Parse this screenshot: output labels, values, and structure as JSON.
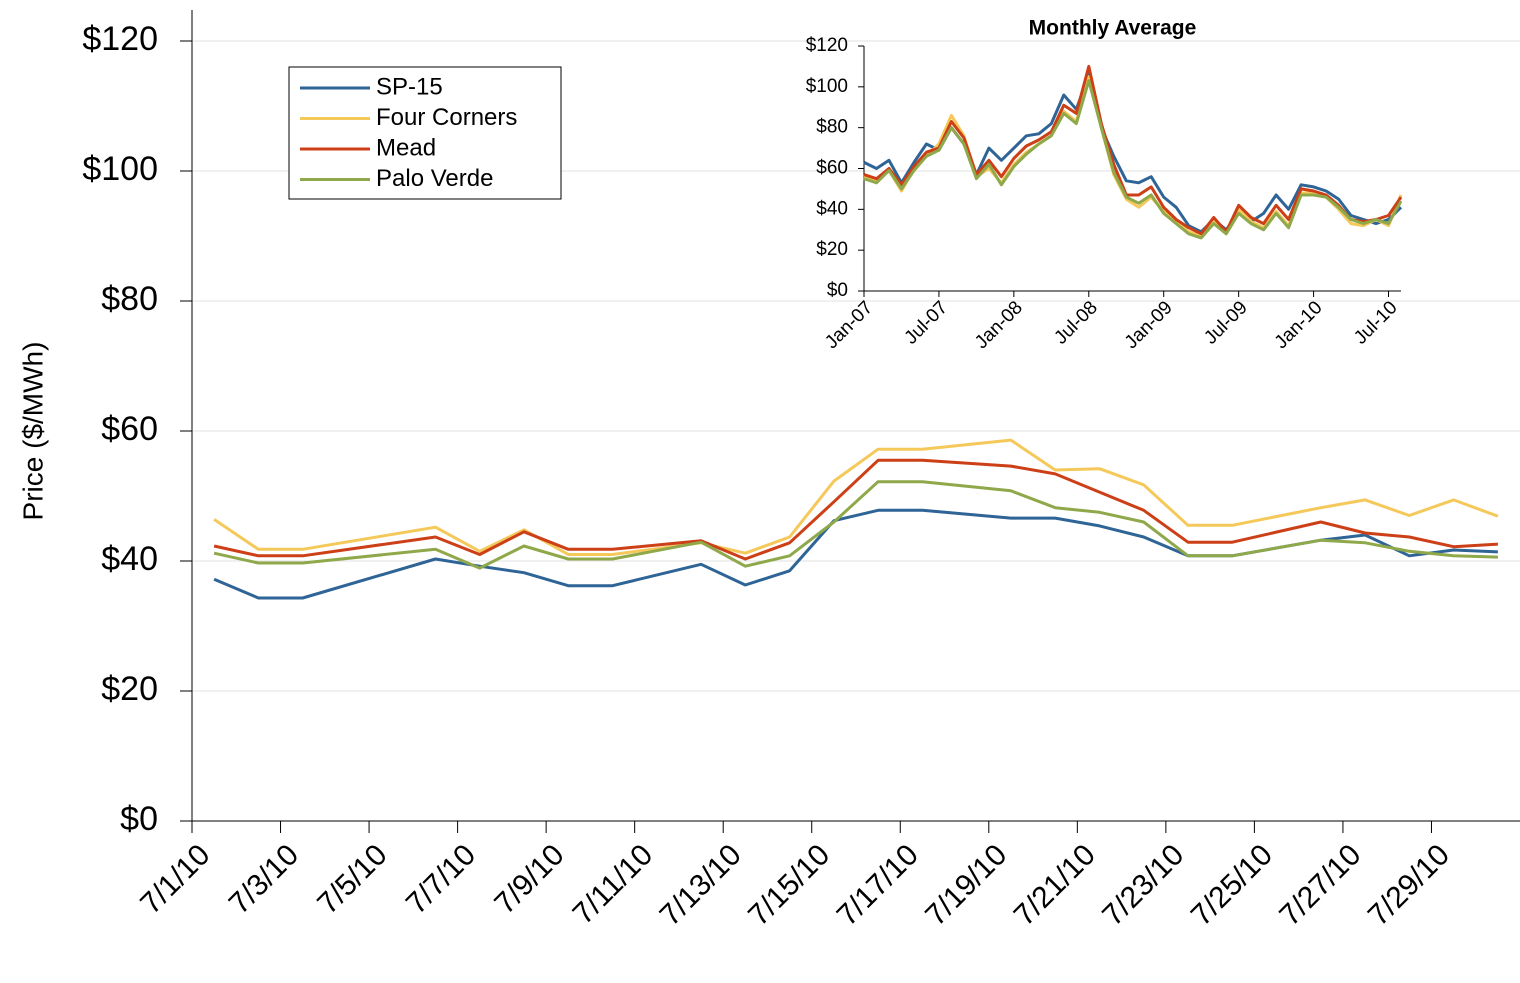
{
  "chart_data": [
    {
      "type": "line",
      "y_label": "Price ($/MWh)",
      "x": [
        "7/1/10",
        "7/2/10",
        "7/3/10",
        "7/6/10",
        "7/7/10",
        "7/8/10",
        "7/9/10",
        "7/10/10",
        "7/12/10",
        "7/13/10",
        "7/14/10",
        "7/15/10",
        "7/16/10",
        "7/17/10",
        "7/19/10",
        "7/20/10",
        "7/21/10",
        "7/22/10",
        "7/23/10",
        "7/24/10",
        "7/26/10",
        "7/27/10",
        "7/28/10",
        "7/29/10",
        "7/30/10"
      ],
      "xlim": [
        "7/1/10",
        "7/30/10"
      ],
      "xticks": [
        "7/1/10",
        "7/3/10",
        "7/5/10",
        "7/7/10",
        "7/9/10",
        "7/11/10",
        "7/13/10",
        "7/15/10",
        "7/17/10",
        "7/19/10",
        "7/21/10",
        "7/23/10",
        "7/25/10",
        "7/27/10",
        "7/29/10"
      ],
      "ylim": [
        0,
        120
      ],
      "yticks": [
        {
          "value": 0,
          "label": "$0"
        },
        {
          "value": 20,
          "label": "$20"
        },
        {
          "value": 40,
          "label": "$40"
        },
        {
          "value": 60,
          "label": "$60"
        },
        {
          "value": 80,
          "label": "$80"
        },
        {
          "value": 100,
          "label": "$100"
        },
        {
          "value": 120,
          "label": "$120"
        }
      ],
      "grid": true,
      "legend": "upper left",
      "series": [
        {
          "name": "SP-15",
          "color": "#2e6496",
          "values": [
            37.2,
            34.3,
            34.3,
            40.3,
            39.2,
            38.2,
            36.2,
            36.2,
            39.5,
            36.3,
            38.5,
            46.2,
            47.8,
            47.8,
            46.6,
            46.6,
            45.4,
            43.7,
            40.8,
            40.8,
            43.2,
            44,
            40.8,
            41.7,
            41.4
          ]
        },
        {
          "name": "Four Corners",
          "color": "#f5c85a",
          "values": [
            46.4,
            41.8,
            41.8,
            45.2,
            41.5,
            44.8,
            41,
            41,
            42.8,
            41.2,
            43.7,
            52.3,
            57.2,
            57.2,
            58.6,
            54,
            54.2,
            51.7,
            45.5,
            45.5,
            48.2,
            49.4,
            47,
            49.4,
            46.9
          ]
        },
        {
          "name": "Mead",
          "color": "#cc3f17",
          "values": [
            42.3,
            40.8,
            40.8,
            43.7,
            41,
            44.5,
            41.8,
            41.8,
            43.1,
            40.3,
            42.8,
            49.1,
            55.5,
            55.5,
            54.6,
            53.4,
            50.6,
            47.8,
            42.9,
            42.9,
            46,
            44.3,
            43.7,
            42.2,
            42.6
          ]
        },
        {
          "name": "Palo Verde",
          "color": "#8fa84a",
          "values": [
            41.2,
            39.7,
            39.7,
            41.8,
            38.9,
            42.3,
            40.3,
            40.3,
            42.9,
            39.2,
            40.8,
            46,
            52.2,
            52.2,
            50.8,
            48.2,
            47.5,
            46,
            40.8,
            40.8,
            43.2,
            42.8,
            41.5,
            40.8,
            40.6
          ]
        }
      ]
    },
    {
      "type": "line",
      "title": "Monthly Average",
      "categories": [
        "Jan-07",
        null,
        null,
        null,
        null,
        null,
        "Jul-07",
        null,
        null,
        null,
        null,
        null,
        "Jan-08",
        null,
        null,
        null,
        null,
        null,
        "Jul-08",
        null,
        null,
        null,
        null,
        null,
        "Jan-09",
        null,
        null,
        null,
        null,
        null,
        "Jul-09",
        null,
        null,
        null,
        null,
        null,
        "Jan-10",
        null,
        null,
        null,
        null,
        null,
        "Jul-10",
        null
      ],
      "ylim": [
        0,
        120
      ],
      "yticks": [
        {
          "value": 0,
          "label": "$0"
        },
        {
          "value": 20,
          "label": "$20"
        },
        {
          "value": 40,
          "label": "$40"
        },
        {
          "value": 60,
          "label": "$60"
        },
        {
          "value": 80,
          "label": "$80"
        },
        {
          "value": 100,
          "label": "$100"
        },
        {
          "value": 120,
          "label": "$120"
        }
      ],
      "grid": false,
      "series": [
        {
          "color": "#2e6496",
          "values": [
            63,
            60,
            64,
            53,
            63,
            72,
            69,
            80,
            72,
            57,
            70,
            64,
            70,
            76,
            77,
            82,
            96,
            89,
            106,
            80,
            66,
            54,
            53,
            56,
            46,
            41,
            32,
            29,
            35,
            30,
            38,
            34,
            38,
            47,
            40,
            52,
            51,
            49,
            45,
            37,
            35,
            33,
            35,
            41
          ]
        },
        {
          "color": "#f5c85a",
          "values": [
            56,
            54,
            59,
            49,
            60,
            66,
            72,
            86,
            76,
            56,
            60,
            53,
            62,
            68,
            72,
            76,
            88,
            83,
            105,
            80,
            57,
            45,
            41,
            46,
            39,
            34,
            29,
            27,
            34,
            29,
            40,
            34,
            31,
            39,
            32,
            48,
            48,
            46,
            40,
            33,
            32,
            35,
            32,
            47
          ]
        },
        {
          "color": "#cc3f17",
          "values": [
            57,
            55,
            60,
            52,
            61,
            68,
            70,
            83,
            75,
            57,
            64,
            56,
            65,
            71,
            74,
            78,
            91,
            87,
            110,
            82,
            62,
            47,
            47,
            51,
            41,
            35,
            31,
            28,
            36,
            29,
            42,
            36,
            33,
            42,
            35,
            50,
            49,
            47,
            42,
            35,
            34,
            35,
            37,
            46
          ]
        },
        {
          "color": "#8fa84a",
          "values": [
            55,
            53,
            59,
            50,
            59,
            66,
            69,
            80,
            72,
            55,
            62,
            52,
            61,
            67,
            72,
            76,
            87,
            82,
            103,
            80,
            58,
            46,
            43,
            47,
            38,
            33,
            28,
            26,
            33,
            28,
            38,
            33,
            30,
            38,
            31,
            47,
            47,
            46,
            41,
            35,
            33,
            35,
            33,
            44
          ]
        }
      ]
    }
  ]
}
